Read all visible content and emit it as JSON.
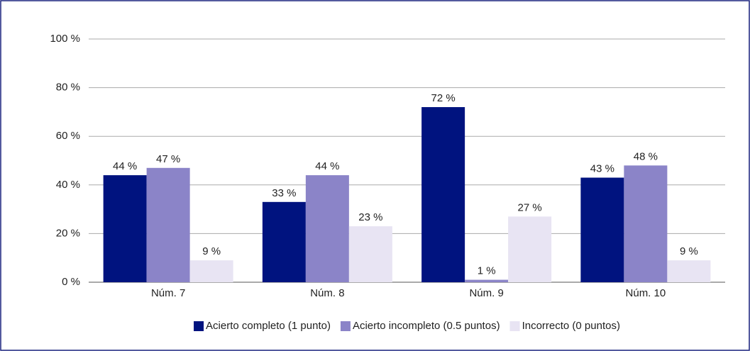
{
  "chart_data": {
    "type": "bar",
    "categories": [
      "Núm. 7",
      "Núm. 8",
      "Núm. 9",
      "Núm. 10"
    ],
    "series": [
      {
        "name": "Acierto completo (1 punto)",
        "color": "#00137f",
        "values": [
          44,
          33,
          72,
          43
        ],
        "value_labels": [
          "44 %",
          "33 %",
          "72 %",
          "43 %"
        ]
      },
      {
        "name": "Acierto incompleto (0.5 puntos)",
        "color": "#8b84c8",
        "values": [
          47,
          44,
          1,
          48
        ],
        "value_labels": [
          "47 %",
          "44 %",
          "1 %",
          "48 %"
        ]
      },
      {
        "name": "Incorrecto (0 puntos)",
        "color": "#e8e4f3",
        "values": [
          9,
          23,
          27,
          9
        ],
        "value_labels": [
          "9 %",
          "23 %",
          "27 %",
          "9 %"
        ]
      }
    ],
    "ylim": [
      0,
      100
    ],
    "yticks": [
      {
        "value": 0,
        "label": "0 %"
      },
      {
        "value": 20,
        "label": "20 %"
      },
      {
        "value": 40,
        "label": "40 %"
      },
      {
        "value": 60,
        "label": "60 %"
      },
      {
        "value": 80,
        "label": "80 %"
      },
      {
        "value": 100,
        "label": "100 %"
      }
    ],
    "grid": true,
    "legend": "bottom"
  }
}
